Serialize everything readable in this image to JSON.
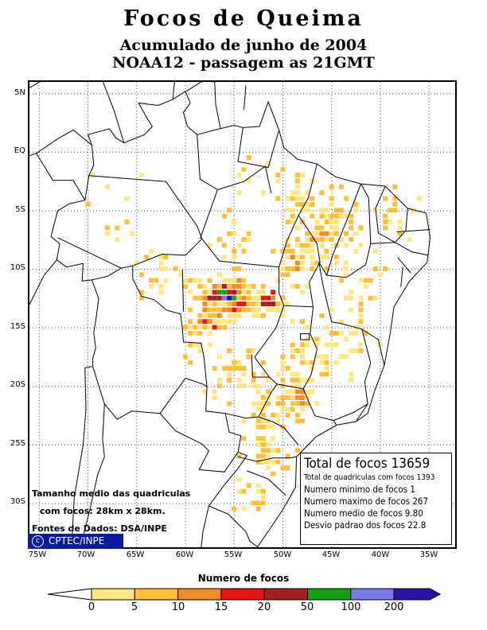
{
  "title": "Focos de Queima",
  "subtitle1": "Acumulado de junho de 2004",
  "subtitle2": "NOAA12 - passagem as 21GMT",
  "lat_labels": [
    "5N",
    "EQ",
    "5S",
    "10S",
    "15S",
    "20S",
    "25S",
    "30S"
  ],
  "lon_labels": [
    "75W",
    "70W",
    "65W",
    "60W",
    "55W",
    "50W",
    "45W",
    "40W",
    "35W"
  ],
  "map_extent": {
    "lon_min": -76,
    "lon_max": -32,
    "lat_min": -34,
    "lat_max": 6
  },
  "stats": {
    "title": "Total de focos 13659",
    "line1": "Total de quadriculas com focos 1393",
    "line2": "Numero minimo de focos 1",
    "line3": "Numero maximo de focos 267",
    "line4": "Numero medio de focos 9.80",
    "line5": "Desvio padrao dos focos 22.8"
  },
  "grid_note": {
    "line1": "Tamanho medio das quadriculas",
    "line2": "com focos: 28km x 28km.",
    "line3": "Fontes de Dados: DSA/INPE"
  },
  "badge": {
    "symbol": "c",
    "label": "CPTEC/INPE"
  },
  "legend": {
    "title": "Numero de focos",
    "ticks": [
      "0",
      "5",
      "10",
      "15",
      "20",
      "50",
      "100",
      "200"
    ],
    "colors": [
      "#ffe680",
      "#ffbe3c",
      "#f08c28",
      "#e61414",
      "#a01e1e",
      "#14a014",
      "#7878e6",
      "#2814a0"
    ]
  },
  "colors": {
    "badge_bg": "#0a1a9a",
    "grid": "#555555",
    "boundary": "#000000"
  }
}
